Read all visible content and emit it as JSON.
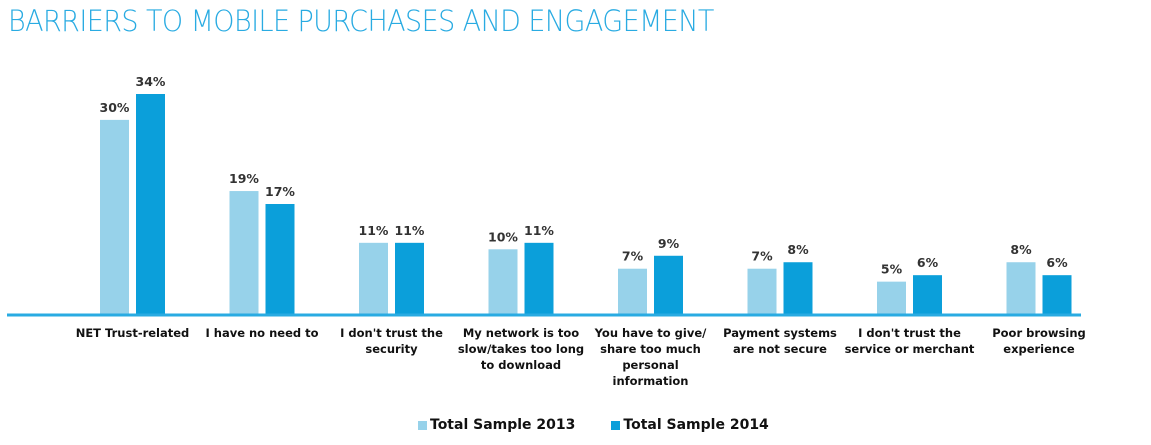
{
  "chart_data": {
    "type": "bar",
    "title": "BARRIERS TO MOBILE PURCHASES AND ENGAGEMENT",
    "xlabel": "",
    "ylabel": "",
    "ylim": [
      0,
      34
    ],
    "grid": false,
    "legend_position": "bottom-center",
    "categories": [
      [
        "NET Trust-related"
      ],
      [
        "I have no need to"
      ],
      [
        "I don't trust the",
        "security"
      ],
      [
        "My network is too",
        "slow/takes too long",
        "to download"
      ],
      [
        "You have to give/",
        "share too much",
        "personal",
        "information"
      ],
      [
        "Payment systems",
        "are not secure"
      ],
      [
        "I don't trust the",
        "service or merchant"
      ],
      [
        "Poor browsing",
        "experience"
      ]
    ],
    "series": [
      {
        "name": "Total Sample 2013",
        "color": "#97d2ea",
        "values": [
          30,
          19,
          11,
          10,
          7,
          7,
          5,
          8
        ],
        "labels": [
          "30%",
          "19%",
          "11%",
          "10%",
          "7%",
          "7%",
          "5%",
          "8%"
        ]
      },
      {
        "name": "Total Sample 2014",
        "color": "#0b9fda",
        "values": [
          34,
          17,
          11,
          11,
          9,
          8,
          6,
          6
        ],
        "labels": [
          "34%",
          "17%",
          "11%",
          "11%",
          "9%",
          "8%",
          "6%",
          "6%"
        ]
      }
    ],
    "axis_color": "#29abe2"
  }
}
